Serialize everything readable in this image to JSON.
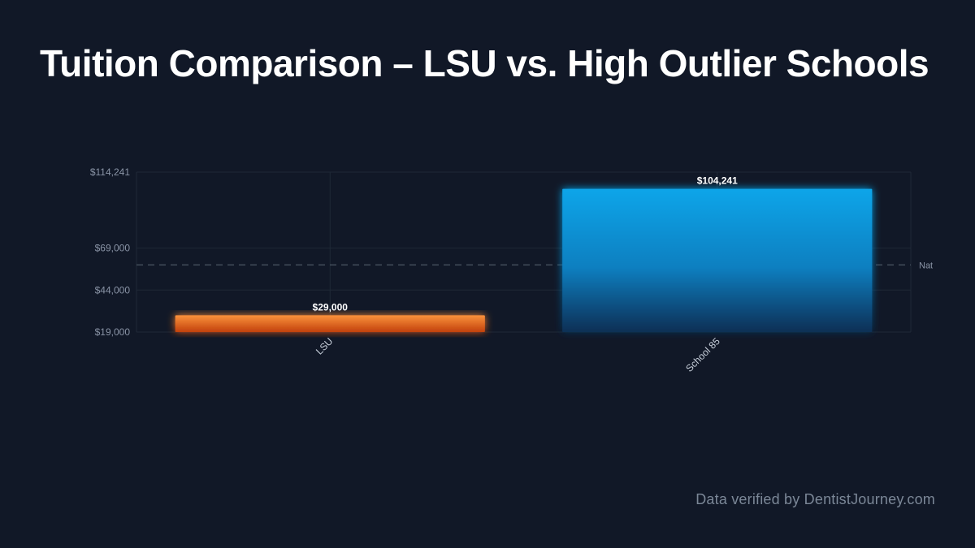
{
  "footer": {
    "text": "Data verified by DentistJourney.com"
  },
  "colors": {
    "background": "#111827",
    "lsu_bar": "#f97316",
    "school_bar": "#0ea5e9",
    "grid": "#1f2937",
    "ref_line": "#4b5563"
  },
  "chart_data": {
    "type": "bar",
    "title": "Tuition Comparison – LSU vs. High Outlier Schools",
    "categories": [
      "LSU",
      "School 85"
    ],
    "values": [
      29000,
      104241
    ],
    "value_labels": [
      "$29,000",
      "$104,241"
    ],
    "bar_colors": [
      "#f97316",
      "#0ea5e9"
    ],
    "ylim": [
      19000,
      114241
    ],
    "yticks": [
      19000,
      44000,
      69000,
      114241
    ],
    "ytick_labels": [
      "$19,000",
      "$44,000",
      "$69,000",
      "$114,241"
    ],
    "reference_line": {
      "value": 59000,
      "label": "Nat"
    },
    "grid": true,
    "xlabel": "",
    "ylabel": ""
  }
}
